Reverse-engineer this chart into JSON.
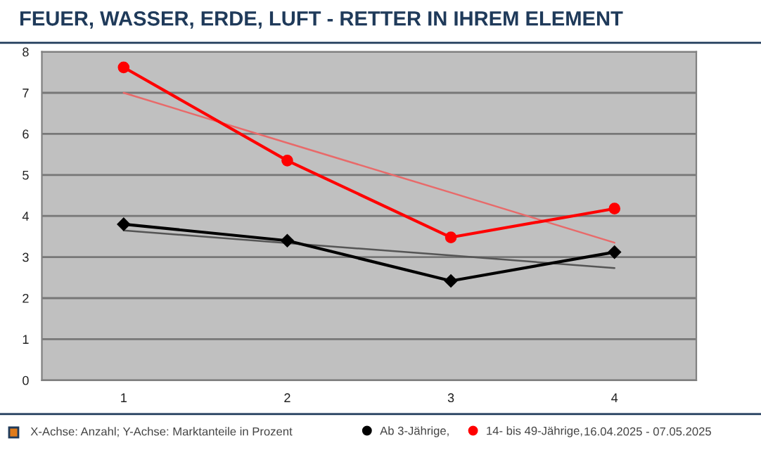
{
  "chart_data": {
    "type": "line",
    "title": "FEUER, WASSER, ERDE, LUFT - RETTER IN IHREM ELEMENT",
    "categories": [
      "1",
      "2",
      "3",
      "4"
    ],
    "series": [
      {
        "name": "Ab 3-Jährige,",
        "color": "#000000",
        "marker": "diamond",
        "values": [
          3.8,
          3.4,
          2.42,
          3.12
        ]
      },
      {
        "name": "14- bis 49-Jährige,",
        "color": "#ff0000",
        "marker": "circle",
        "values": [
          7.62,
          5.35,
          3.48,
          4.18
        ]
      },
      {
        "color": "#555555",
        "marker": "none",
        "values": [
          3.65,
          3.34,
          3.04,
          2.73
        ]
      },
      {
        "color": "#e86a6a",
        "marker": "none",
        "values": [
          7.0,
          5.78,
          4.57,
          3.35
        ]
      }
    ],
    "ylim": [
      0,
      8
    ],
    "yticks": [
      0,
      1,
      2,
      3,
      4,
      5,
      6,
      7,
      8
    ],
    "grid": "y",
    "legend": "bottom",
    "line_style": "solid",
    "annotations": [
      "X-Achse: Anzahl; Y-Achse: Marktanteile in Prozent",
      "16.04.2025 - 07.05.2025"
    ]
  }
}
